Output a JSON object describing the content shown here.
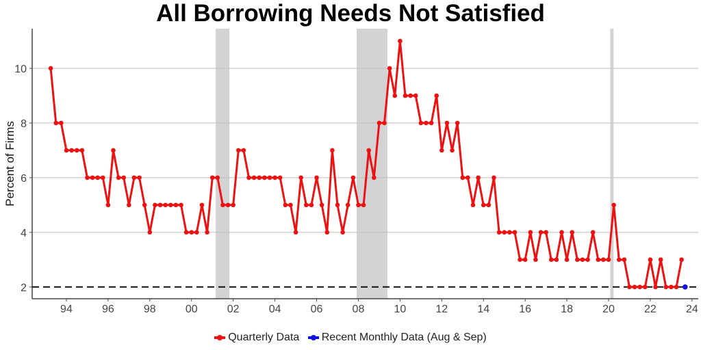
{
  "chart_data": {
    "type": "line",
    "title": "All Borrowing Needs Not Satisfied",
    "ylabel": "Percent of Firms",
    "xlabel": "",
    "xlim": [
      1992.36,
      2024.3
    ],
    "ylim": [
      1.57,
      11.45
    ],
    "x_ticks": [
      {
        "v": 1994,
        "label": "94"
      },
      {
        "v": 1996,
        "label": "96"
      },
      {
        "v": 1998,
        "label": "98"
      },
      {
        "v": 2000,
        "label": "00"
      },
      {
        "v": 2002,
        "label": "02"
      },
      {
        "v": 2004,
        "label": "04"
      },
      {
        "v": 2006,
        "label": "06"
      },
      {
        "v": 2008,
        "label": "08"
      },
      {
        "v": 2010,
        "label": "10"
      },
      {
        "v": 2012,
        "label": "12"
      },
      {
        "v": 2014,
        "label": "14"
      },
      {
        "v": 2016,
        "label": "16"
      },
      {
        "v": 2018,
        "label": "18"
      },
      {
        "v": 2020,
        "label": "20"
      },
      {
        "v": 2022,
        "label": "22"
      },
      {
        "v": 2024,
        "label": "24"
      }
    ],
    "y_ticks": [
      2,
      4,
      6,
      8,
      10
    ],
    "grid": "horizontal",
    "reference_line": {
      "y": 2,
      "style": "dashed",
      "color": "#000000"
    },
    "recessions": [
      [
        2001.16,
        2001.82
      ],
      [
        2007.92,
        2009.4
      ],
      [
        2020.08,
        2020.24
      ]
    ],
    "legend_position": "bottom",
    "series": [
      {
        "name": "Quarterly Data",
        "color": "#ee1111",
        "x_start": 1993.25,
        "x_step": 0.25,
        "values": [
          10,
          8,
          8,
          7,
          7,
          7,
          7,
          6,
          6,
          6,
          6,
          5,
          7,
          6,
          6,
          5,
          6,
          6,
          5,
          4,
          5,
          5,
          5,
          5,
          5,
          5,
          4,
          4,
          4,
          5,
          4,
          6,
          6,
          5,
          5,
          5,
          7,
          7,
          6,
          6,
          6,
          6,
          6,
          6,
          6,
          5,
          5,
          4,
          6,
          5,
          5,
          6,
          5,
          4,
          7,
          5,
          4,
          5,
          6,
          5,
          5,
          7,
          6,
          8,
          8,
          10,
          9,
          11,
          9,
          9,
          9,
          8,
          8,
          8,
          9,
          7,
          8,
          7,
          8,
          6,
          6,
          5,
          6,
          5,
          5,
          6,
          4,
          4,
          4,
          4,
          3,
          3,
          4,
          3,
          4,
          4,
          3,
          3,
          4,
          3,
          4,
          3,
          3,
          3,
          4,
          3,
          3,
          3,
          5,
          3,
          3,
          2,
          2,
          2,
          2,
          3,
          2,
          3,
          2,
          2,
          2,
          3
        ]
      },
      {
        "name": "Recent Monthly Data (Aug & Sep)",
        "color": "#1111dd",
        "x": [
          2023.67
        ],
        "values": [
          2
        ]
      }
    ]
  }
}
